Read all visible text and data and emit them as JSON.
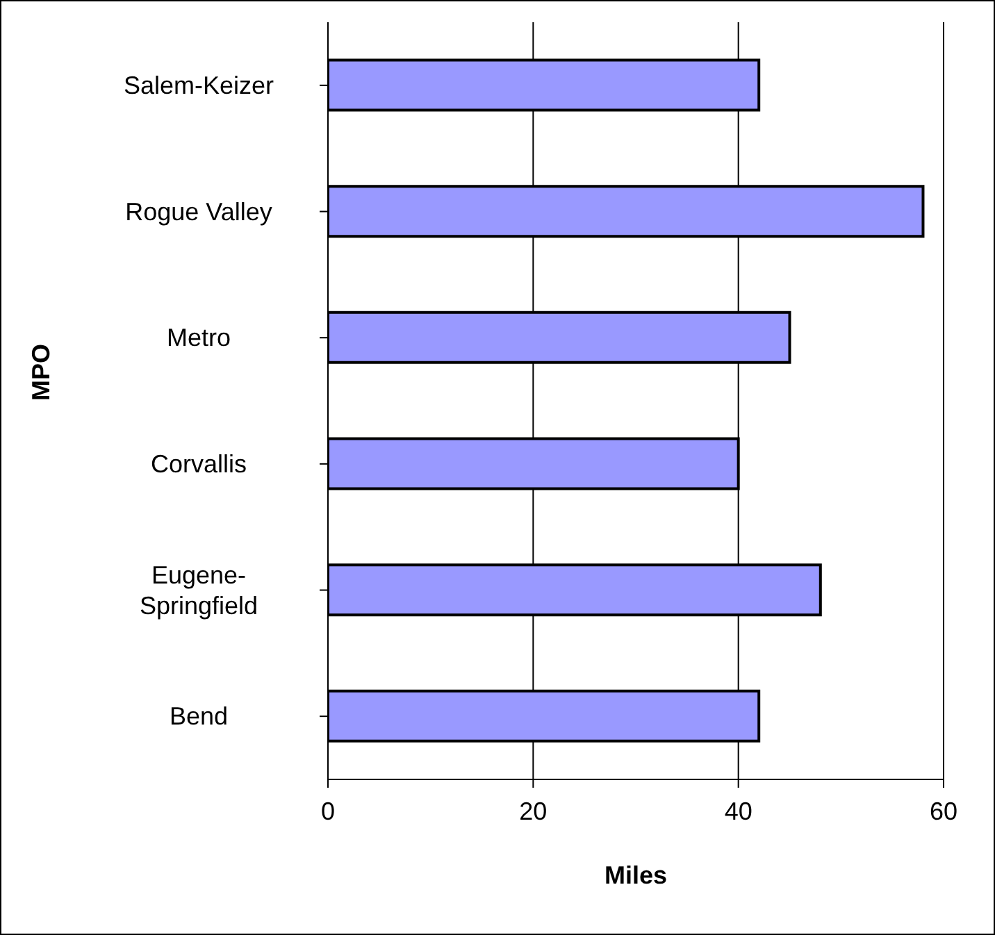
{
  "chart_data": {
    "type": "bar",
    "orientation": "horizontal",
    "xlabel": "Miles",
    "ylabel": "MPO",
    "categories": [
      "Salem-Keizer",
      "Rogue Valley",
      "Metro",
      "Corvallis",
      "Eugene-Springfield",
      "Bend"
    ],
    "values": [
      42,
      58,
      45,
      40,
      48,
      42
    ],
    "color": "#9999ff",
    "xlim": [
      0,
      60
    ],
    "xticks": [
      0,
      20,
      40,
      60
    ],
    "grid": "x"
  }
}
